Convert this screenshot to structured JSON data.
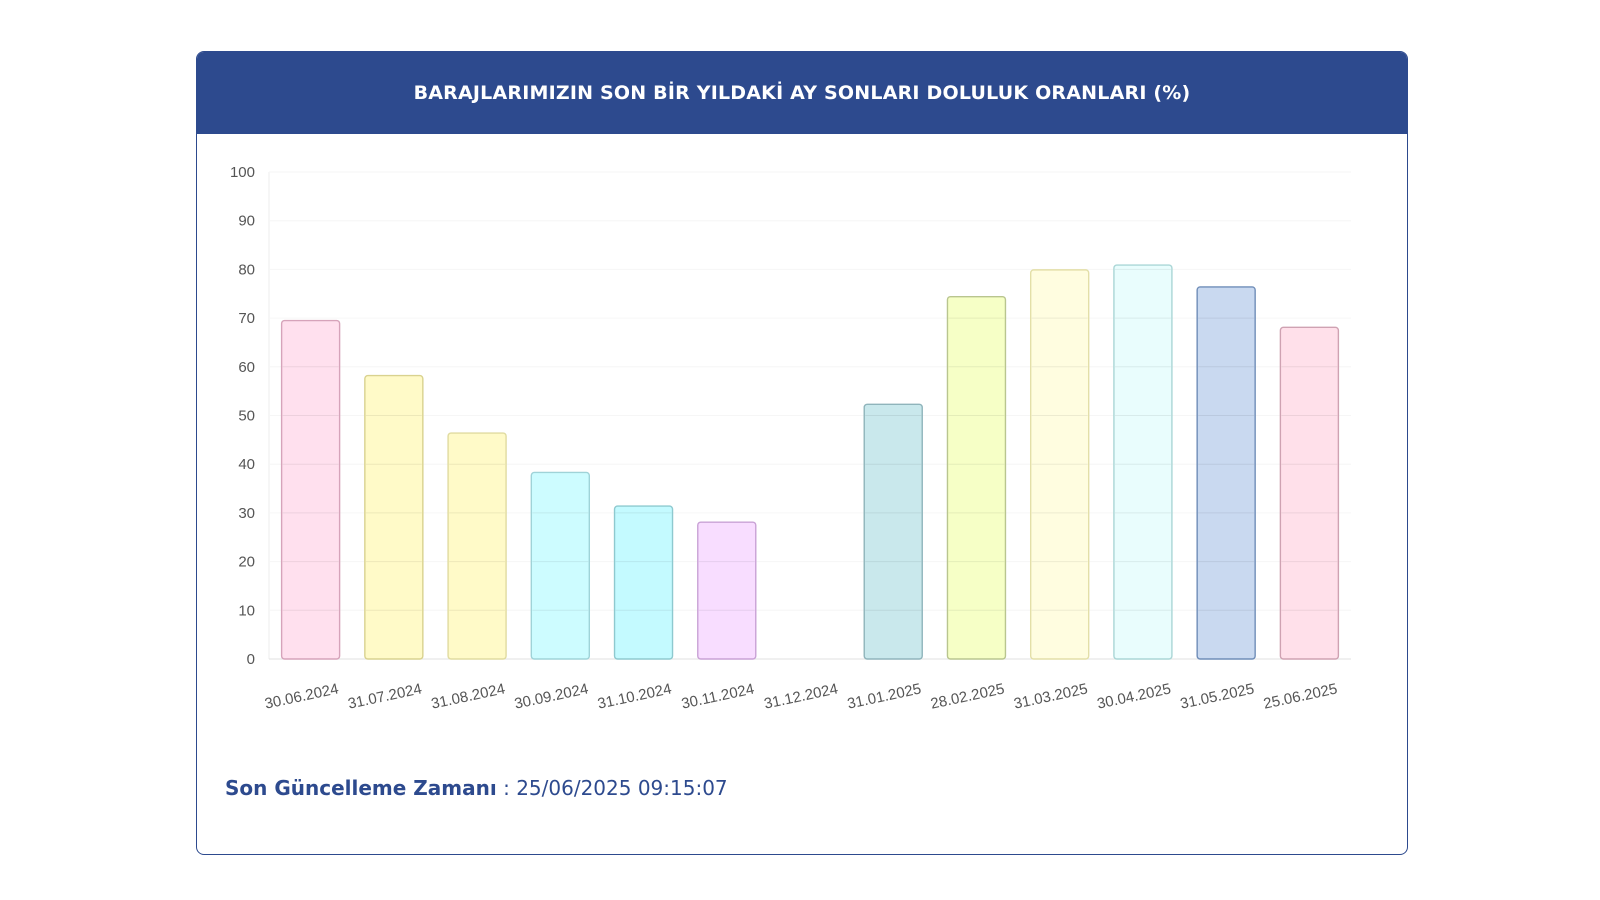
{
  "header": {
    "title": "BARAJLARIMIZIN SON BİR YILDAKİ AY SONLARI DOLULUK ORANLARI (%)"
  },
  "footer": {
    "label": "Son Güncelleme Zamanı",
    "separator": ":",
    "value": "25/06/2025 09:15:07"
  },
  "chart_data": {
    "type": "bar",
    "categories": [
      "30.06.2024",
      "31.07.2024",
      "31.08.2024",
      "30.09.2024",
      "31.10.2024",
      "30.11.2024",
      "31.12.2024",
      "31.01.2025",
      "28.02.2025",
      "31.03.2025",
      "30.04.2025",
      "31.05.2025",
      "25.06.2025"
    ],
    "values": [
      69.5,
      58.2,
      46.4,
      38.3,
      31.4,
      28.1,
      0,
      52.3,
      74.4,
      79.9,
      80.9,
      76.4,
      68.1
    ],
    "colors": [
      "#ffe0ee",
      "#fffac8",
      "#fffac8",
      "#cdfcff",
      "#c4faff",
      "#f8ddff",
      "#ffffff",
      "#c9e8ec",
      "#f6ffc6",
      "#fffde0",
      "#e9fdfd",
      "#c9d9f0",
      "#ffe0ea"
    ],
    "border_colors": [
      "#d6a3ba",
      "#d9d28f",
      "#e0dba0",
      "#9fd3d8",
      "#8ec9cf",
      "#c9a2d6",
      "#cccccc",
      "#8fb4bb",
      "#b9c58f",
      "#e3dfa8",
      "#aad6d6",
      "#6f8db8",
      "#cfa2b2"
    ],
    "ylim": [
      0,
      100
    ],
    "yticks": [
      0,
      10,
      20,
      30,
      40,
      50,
      60,
      70,
      80,
      90,
      100
    ],
    "grid": true,
    "xlabel": "",
    "ylabel": ""
  }
}
